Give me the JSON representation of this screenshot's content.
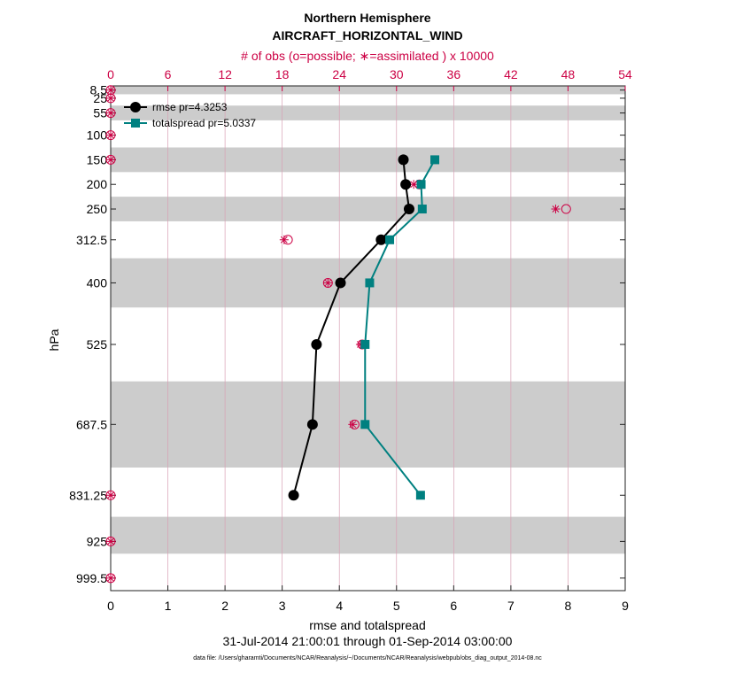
{
  "chart_data": {
    "type": "line",
    "title": "Northern Hemisphere",
    "subtitle": "AIRCRAFT_HORIZONTAL_WIND",
    "top_axis_label": "# of obs (o=possible; ∗=assimilated ) x 10000",
    "xlabel": "rmse and totalspread",
    "ylabel": "hPa",
    "date_range": "31-Jul-2014 21:00:01 through 01-Sep-2014 03:00:00",
    "footnote": "data file: /Users/gharamti/Documents/NCAR/Reanalysis/~/Documents/NCAR/Reanalysis/webpub/obs_diag_output_2014-08.nc",
    "xlim": [
      0,
      9
    ],
    "x_ticks": [
      "0",
      "1",
      "2",
      "3",
      "4",
      "5",
      "6",
      "7",
      "8",
      "9"
    ],
    "top_xlim": [
      0,
      54
    ],
    "top_ticks": [
      "0",
      "6",
      "12",
      "18",
      "24",
      "30",
      "36",
      "42",
      "48",
      "54"
    ],
    "ylim": [
      1025,
      0
    ],
    "levels": [
      8.5,
      25,
      55,
      100,
      150,
      200,
      250,
      312.5,
      400,
      525,
      687.5,
      831.25,
      925,
      999.5
    ],
    "level_labels": [
      "8.5",
      "25",
      "55",
      "100",
      "150",
      "200",
      "250",
      "312.5",
      "400",
      "525",
      "687.5",
      "831.25",
      "925",
      "999.5"
    ],
    "shaded_bands": [
      [
        0,
        17
      ],
      [
        40,
        70
      ],
      [
        125,
        175
      ],
      [
        225,
        275
      ],
      [
        350,
        450
      ],
      [
        600,
        775
      ],
      [
        875,
        950
      ]
    ],
    "series": [
      {
        "name": "rmse",
        "legend": "rmse pr=4.3253",
        "color": "#000000",
        "marker": "circle",
        "levels": [
          150,
          200,
          250,
          312.5,
          400,
          525,
          687.5,
          831.25
        ],
        "values": [
          5.12,
          5.16,
          5.22,
          4.73,
          4.02,
          3.6,
          3.53,
          3.2
        ]
      },
      {
        "name": "totalspread",
        "legend": "totalspread pr=5.0337",
        "color": "#008080",
        "marker": "square",
        "levels": [
          150,
          200,
          250,
          312.5,
          400,
          525,
          687.5,
          831.25
        ],
        "values": [
          5.67,
          5.43,
          5.45,
          4.88,
          4.53,
          4.45,
          4.45,
          5.42
        ]
      }
    ],
    "obs_counts": {
      "unit": "x 10000",
      "color": "#cc0044",
      "levels": [
        8.5,
        25,
        55,
        100,
        150,
        200,
        250,
        312.5,
        400,
        525,
        687.5,
        831.25,
        925,
        999.5
      ],
      "possible": [
        0,
        0,
        0,
        0,
        0,
        32.4,
        47.8,
        18.6,
        22.8,
        26.4,
        25.6,
        0,
        0,
        0
      ],
      "assimilated": [
        0,
        0,
        0,
        0,
        0,
        31.8,
        46.7,
        18.2,
        22.8,
        26.2,
        25.4,
        0,
        0,
        0
      ]
    }
  }
}
